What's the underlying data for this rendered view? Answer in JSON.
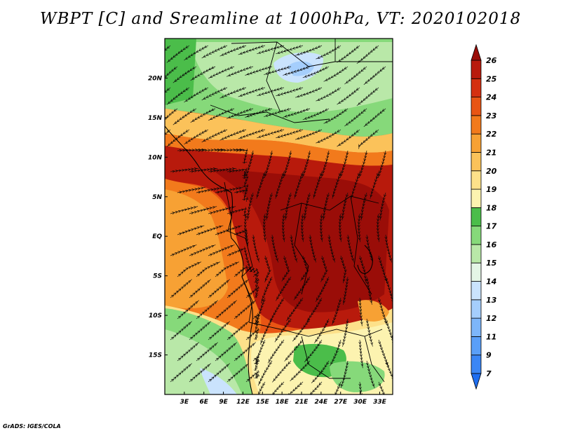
{
  "title": "WBPT [C] and Sreamline at 1000hPa, VT: 2020102018",
  "credit": "GrADS: IGES/COLA",
  "map": {
    "lon_range": [
      0,
      35
    ],
    "lat_range": [
      -20,
      25
    ],
    "lon_ticks": [
      {
        "value": 3,
        "label": "3E"
      },
      {
        "value": 6,
        "label": "6E"
      },
      {
        "value": 9,
        "label": "9E"
      },
      {
        "value": 12,
        "label": "12E"
      },
      {
        "value": 15,
        "label": "15E"
      },
      {
        "value": 18,
        "label": "18E"
      },
      {
        "value": 21,
        "label": "21E"
      },
      {
        "value": 24,
        "label": "24E"
      },
      {
        "value": 27,
        "label": "27E"
      },
      {
        "value": 30,
        "label": "30E"
      },
      {
        "value": 33,
        "label": "33E"
      }
    ],
    "lat_ticks": [
      {
        "value": 20,
        "label": "20N"
      },
      {
        "value": 15,
        "label": "15N"
      },
      {
        "value": 10,
        "label": "10N"
      },
      {
        "value": 5,
        "label": "5N"
      },
      {
        "value": 0,
        "label": "EQ"
      },
      {
        "value": -5,
        "label": "5S"
      },
      {
        "value": -10,
        "label": "10S"
      },
      {
        "value": -15,
        "label": "15S"
      }
    ]
  },
  "colorbar": {
    "labels": [
      "7",
      "9",
      "11",
      "12",
      "13",
      "14",
      "15",
      "16",
      "17",
      "18",
      "19",
      "20",
      "21",
      "22",
      "23",
      "24",
      "25",
      "26"
    ],
    "colors": [
      "#1e6ef0",
      "#3a86f5",
      "#5a9ff8",
      "#7db6fa",
      "#a5cefc",
      "#cae3fd",
      "#e4f5e6",
      "#b9e8a8",
      "#86d97a",
      "#4bbd4a",
      "#fcf3b0",
      "#fde18a",
      "#fbc25a",
      "#f7a134",
      "#f27a1c",
      "#e85514",
      "#d43010",
      "#b81a0c",
      "#9a0d08"
    ]
  }
}
